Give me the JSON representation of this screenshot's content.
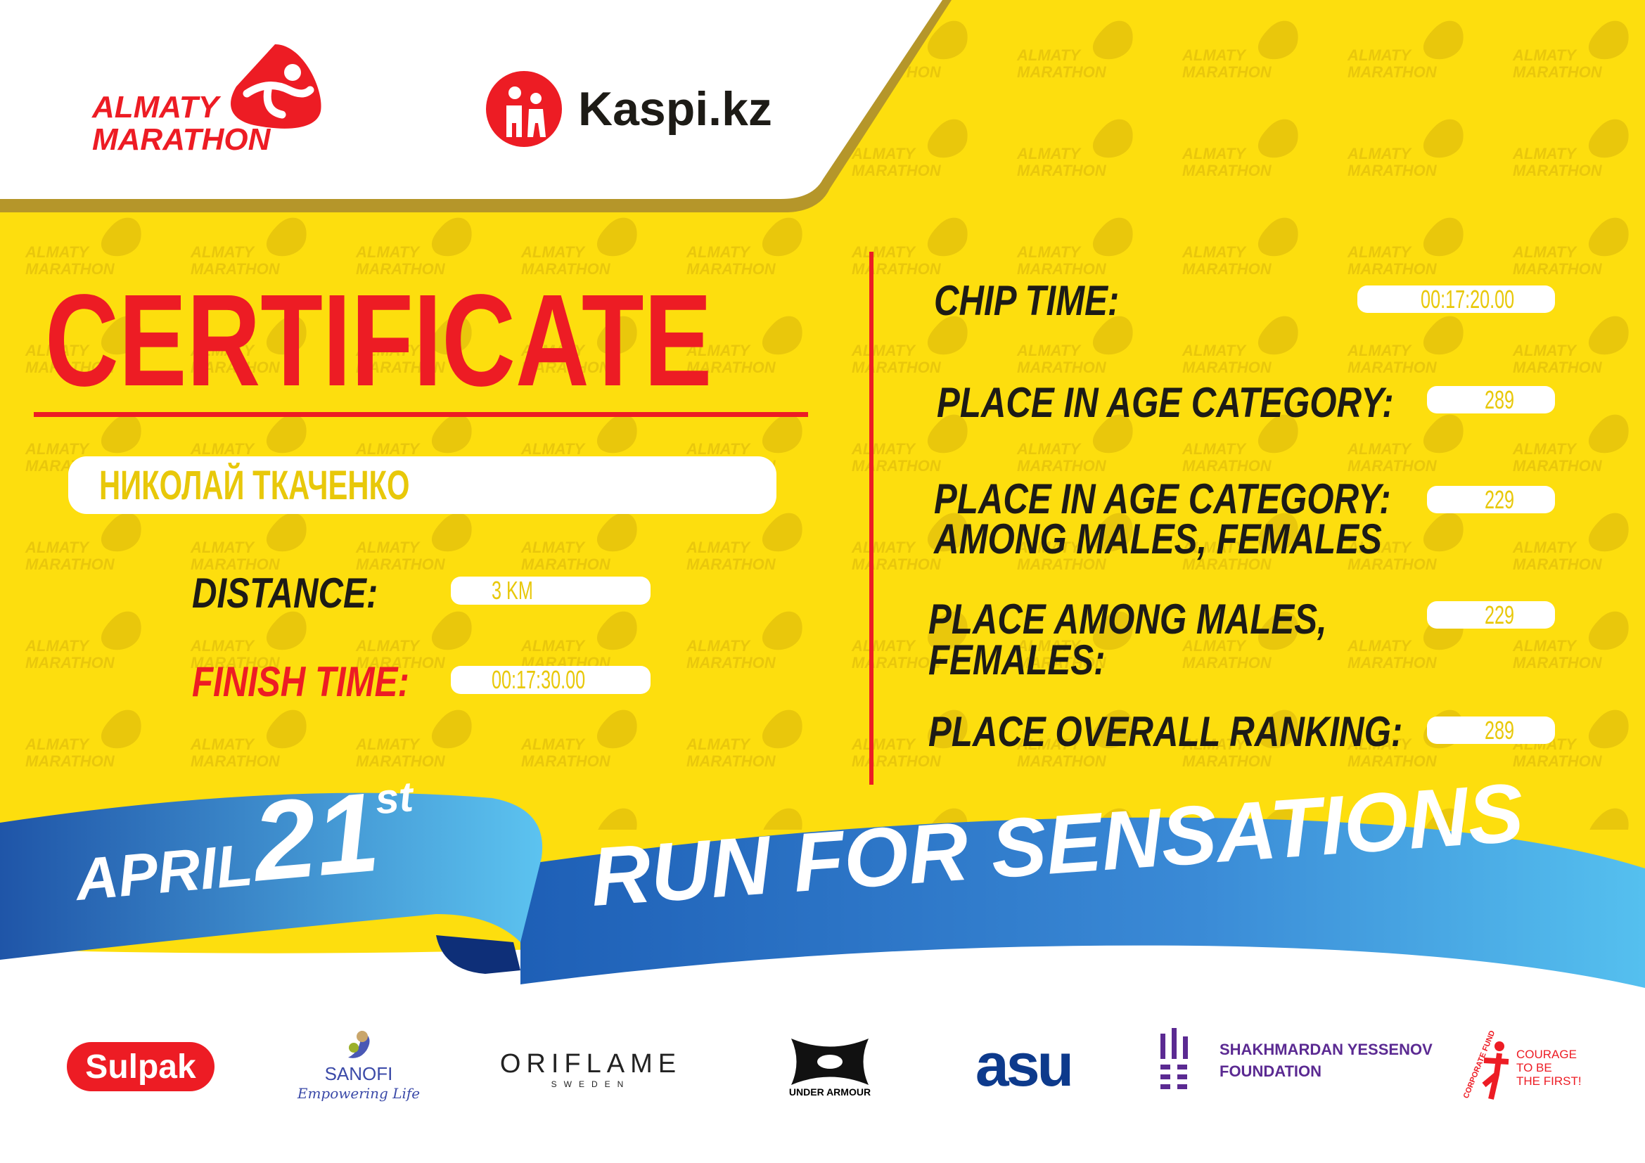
{
  "watermark": {
    "line1": "ALMATY",
    "line2": "MARATHON"
  },
  "header": {
    "logo_line1": "ALMATY",
    "logo_line2": "MARATHON",
    "partner_logo": "Kaspi.kz"
  },
  "title": "CERTIFICATE",
  "participant_name": "НИКОЛАЙ ТКАЧЕНКО",
  "left_fields": [
    {
      "label": "DISTANCE:",
      "value": "3 KM"
    },
    {
      "label": "FINISH TIME:",
      "value": "00:17:30.00"
    }
  ],
  "right_fields": [
    {
      "label": "CHIP TIME:",
      "value": "00:17:20.00"
    },
    {
      "label": "PLACE IN AGE CATEGORY:",
      "value": "289"
    },
    {
      "label_line1": "PLACE IN AGE CATEGORY:",
      "label_line2": "AMONG MALES, FEMALES",
      "value": "229"
    },
    {
      "label_line1": "PLACE AMONG MALES,",
      "label_line2": "FEMALES:",
      "value": "229"
    },
    {
      "label": "PLACE OVERALL RANKING:",
      "value": "289"
    }
  ],
  "ribbon": {
    "month": "APRIL",
    "day": "21",
    "suffix": "st",
    "slogan": "RUN FOR SENSATIONS"
  },
  "sponsors": {
    "sulpak": "Sulpak",
    "sanofi": "SANOFI",
    "sanofi_tag": "Empowering Life",
    "oriflame": "ORIFLAME",
    "oriflame_sub": "SWEDEN",
    "under_armour": "UNDER ARMOUR",
    "asu": "asu",
    "yessenov_line1": "SHAKHMARDAN YESSENOV",
    "yessenov_line2": "FOUNDATION",
    "courage_line1": "COURAGE",
    "courage_line2": "TO BE",
    "courage_line3": "THE FIRST!",
    "courage_arc": "CORPORATE FUND"
  },
  "colors": {
    "yellow": "#fdde0e",
    "red": "#ed1c24",
    "dark": "#1d1b16",
    "blue": "#2f7fd0",
    "light_blue": "#52bdee",
    "purple": "#5b2a92",
    "navy": "#0d3a8c"
  }
}
